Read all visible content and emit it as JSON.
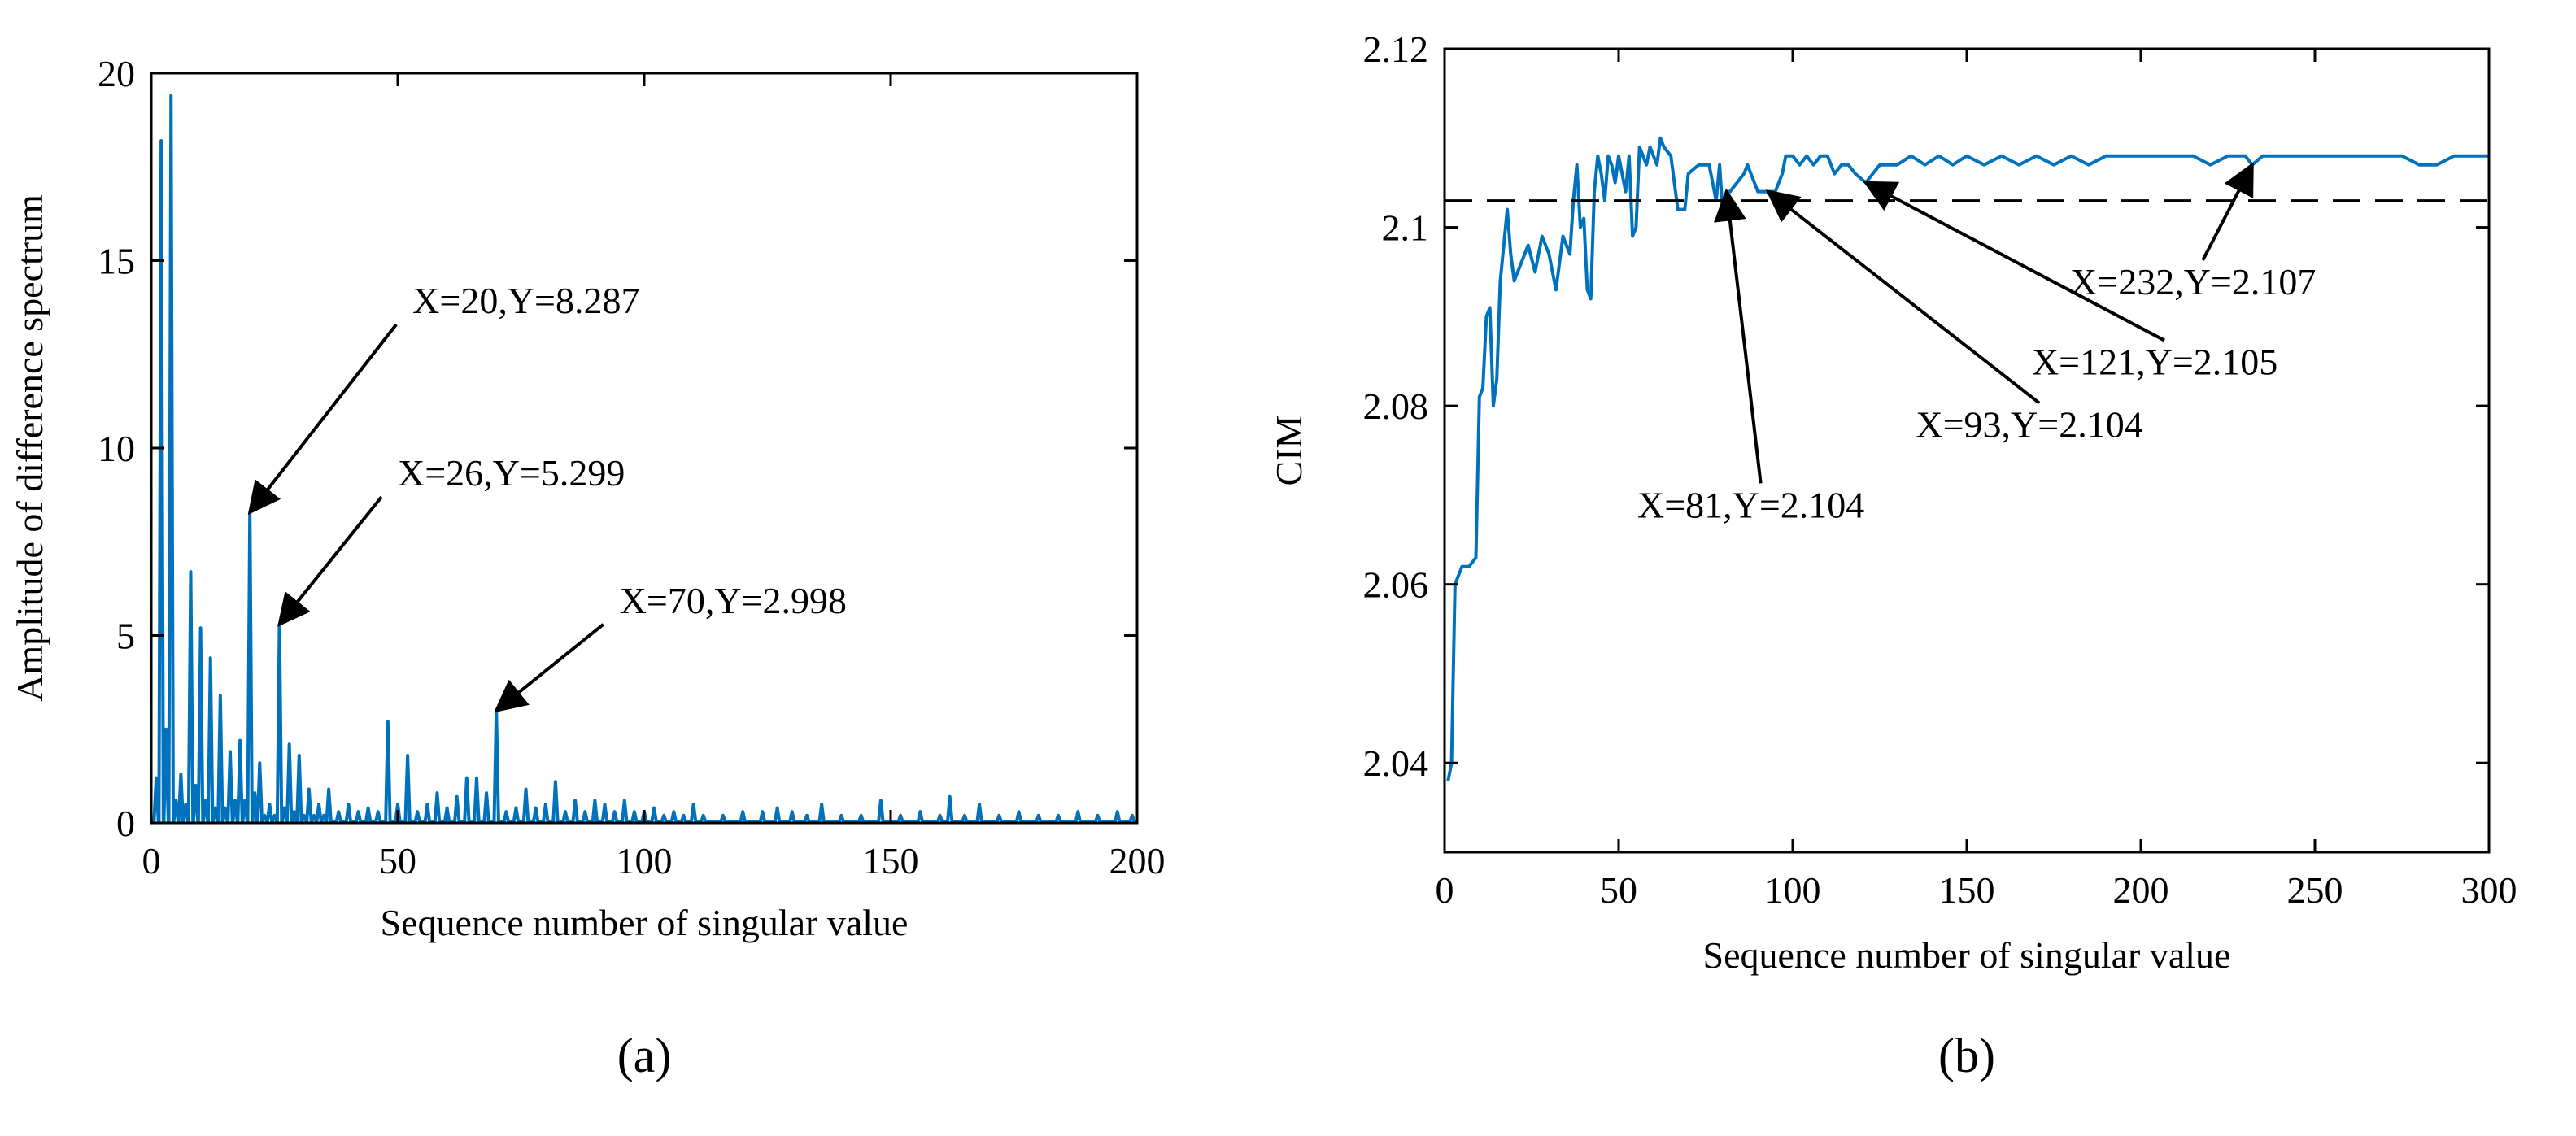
{
  "chart_data": [
    {
      "type": "line",
      "panel_label": "(a)",
      "xlabel": "Sequence number of singular value",
      "ylabel": "Amplitude of difference spectrum",
      "xlim": [
        0,
        200
      ],
      "ylim": [
        0,
        20
      ],
      "xticks": [
        0,
        50,
        100,
        150,
        200
      ],
      "yticks": [
        0,
        5,
        10,
        15,
        20
      ],
      "grid": false,
      "color": "#0072bd",
      "series": [
        {
          "name": "difference spectrum",
          "peaks": [
            [
              1,
              1.2
            ],
            [
              2,
              18.2
            ],
            [
              3,
              2.5
            ],
            [
              4,
              19.4
            ],
            [
              5,
              0.6
            ],
            [
              6,
              1.3
            ],
            [
              7,
              0.5
            ],
            [
              8,
              6.7
            ],
            [
              9,
              1.0
            ],
            [
              10,
              5.2
            ],
            [
              11,
              0.6
            ],
            [
              12,
              4.4
            ],
            [
              13,
              0.4
            ],
            [
              14,
              3.4
            ],
            [
              15,
              0.4
            ],
            [
              16,
              1.9
            ],
            [
              17,
              0.6
            ],
            [
              18,
              2.2
            ],
            [
              19,
              0.6
            ],
            [
              20,
              8.287
            ],
            [
              21,
              0.8
            ],
            [
              22,
              1.6
            ],
            [
              23,
              0.2
            ],
            [
              24,
              0.5
            ],
            [
              25,
              0.2
            ],
            [
              26,
              5.299
            ],
            [
              27,
              0.4
            ],
            [
              28,
              2.1
            ],
            [
              29,
              0.3
            ],
            [
              30,
              1.8
            ],
            [
              31,
              0.2
            ],
            [
              32,
              0.9
            ],
            [
              33,
              0.2
            ],
            [
              34,
              0.5
            ],
            [
              35,
              0.2
            ],
            [
              36,
              0.9
            ],
            [
              38,
              0.3
            ],
            [
              40,
              0.5
            ],
            [
              42,
              0.3
            ],
            [
              44,
              0.4
            ],
            [
              46,
              0.3
            ],
            [
              48,
              2.7
            ],
            [
              50,
              0.5
            ],
            [
              52,
              1.8
            ],
            [
              54,
              0.3
            ],
            [
              56,
              0.5
            ],
            [
              58,
              0.8
            ],
            [
              60,
              0.4
            ],
            [
              62,
              0.7
            ],
            [
              64,
              1.2
            ],
            [
              66,
              1.2
            ],
            [
              68,
              0.8
            ],
            [
              70,
              2.998
            ],
            [
              72,
              0.3
            ],
            [
              74,
              0.4
            ],
            [
              76,
              0.9
            ],
            [
              78,
              0.4
            ],
            [
              80,
              0.5
            ],
            [
              82,
              1.1
            ],
            [
              84,
              0.3
            ],
            [
              86,
              0.6
            ],
            [
              88,
              0.3
            ],
            [
              90,
              0.6
            ],
            [
              92,
              0.5
            ],
            [
              94,
              0.3
            ],
            [
              96,
              0.6
            ],
            [
              98,
              0.3
            ],
            [
              100,
              0.3
            ],
            [
              102,
              0.4
            ],
            [
              104,
              0.2
            ],
            [
              106,
              0.3
            ],
            [
              108,
              0.2
            ],
            [
              110,
              0.5
            ],
            [
              112,
              0.2
            ],
            [
              116,
              0.2
            ],
            [
              120,
              0.3
            ],
            [
              124,
              0.3
            ],
            [
              127,
              0.4
            ],
            [
              130,
              0.3
            ],
            [
              133,
              0.2
            ],
            [
              136,
              0.5
            ],
            [
              140,
              0.2
            ],
            [
              144,
              0.2
            ],
            [
              148,
              0.6
            ],
            [
              152,
              0.2
            ],
            [
              156,
              0.3
            ],
            [
              160,
              0.2
            ],
            [
              162,
              0.7
            ],
            [
              165,
              0.2
            ],
            [
              168,
              0.5
            ],
            [
              172,
              0.2
            ],
            [
              176,
              0.3
            ],
            [
              180,
              0.2
            ],
            [
              184,
              0.2
            ],
            [
              188,
              0.3
            ],
            [
              192,
              0.2
            ],
            [
              196,
              0.3
            ],
            [
              199,
              0.2
            ]
          ]
        }
      ],
      "annotations": [
        {
          "text": "X=20,Y=8.287",
          "x": 20,
          "y": 8.287,
          "text_x": 53,
          "text_y": 13.6
        },
        {
          "text": "X=26,Y=5.299",
          "x": 26,
          "y": 5.299,
          "text_x": 50,
          "text_y": 9.0
        },
        {
          "text": "X=70,Y=2.998",
          "x": 70,
          "y": 2.998,
          "text_x": 95,
          "text_y": 5.6
        }
      ]
    },
    {
      "type": "line",
      "panel_label": "(b)",
      "xlabel": "Sequence number of singular value",
      "ylabel": "CIM",
      "xlim": [
        0,
        300
      ],
      "ylim": [
        2.03,
        2.12
      ],
      "xticks": [
        0,
        50,
        100,
        150,
        200,
        250,
        300
      ],
      "yticks": [
        2.04,
        2.06,
        2.08,
        2.1,
        2.12
      ],
      "ytick_labels": [
        "2.04",
        "2.06",
        "2.08",
        "2.1",
        "2.12"
      ],
      "grid": false,
      "color": "#0072bd",
      "threshold": {
        "y": 2.103,
        "style": "dashed"
      },
      "series": [
        {
          "name": "CIM",
          "points": [
            [
              1,
              2.038
            ],
            [
              2,
              2.04
            ],
            [
              3,
              2.06
            ],
            [
              5,
              2.062
            ],
            [
              7,
              2.062
            ],
            [
              9,
              2.063
            ],
            [
              10,
              2.081
            ],
            [
              11,
              2.082
            ],
            [
              12,
              2.09
            ],
            [
              13,
              2.091
            ],
            [
              14,
              2.08
            ],
            [
              15,
              2.083
            ],
            [
              16,
              2.094
            ],
            [
              17,
              2.098
            ],
            [
              18,
              2.102
            ],
            [
              19,
              2.097
            ],
            [
              20,
              2.094
            ],
            [
              22,
              2.096
            ],
            [
              24,
              2.098
            ],
            [
              26,
              2.095
            ],
            [
              28,
              2.099
            ],
            [
              30,
              2.097
            ],
            [
              32,
              2.093
            ],
            [
              34,
              2.099
            ],
            [
              36,
              2.097
            ],
            [
              37,
              2.103
            ],
            [
              38,
              2.107
            ],
            [
              39,
              2.1
            ],
            [
              40,
              2.101
            ],
            [
              41,
              2.093
            ],
            [
              42,
              2.092
            ],
            [
              43,
              2.104
            ],
            [
              44,
              2.108
            ],
            [
              45,
              2.106
            ],
            [
              46,
              2.103
            ],
            [
              47,
              2.108
            ],
            [
              48,
              2.107
            ],
            [
              49,
              2.105
            ],
            [
              50,
              2.108
            ],
            [
              51,
              2.106
            ],
            [
              52,
              2.104
            ],
            [
              53,
              2.108
            ],
            [
              54,
              2.099
            ],
            [
              55,
              2.1
            ],
            [
              56,
              2.109
            ],
            [
              57,
              2.108
            ],
            [
              58,
              2.107
            ],
            [
              59,
              2.109
            ],
            [
              60,
              2.108
            ],
            [
              61,
              2.107
            ],
            [
              62,
              2.11
            ],
            [
              63,
              2.109
            ],
            [
              65,
              2.108
            ],
            [
              67,
              2.102
            ],
            [
              69,
              2.102
            ],
            [
              70,
              2.106
            ],
            [
              73,
              2.107
            ],
            [
              76,
              2.107
            ],
            [
              78,
              2.103
            ],
            [
              79,
              2.107
            ],
            [
              80,
              2.101
            ],
            [
              81,
              2.104
            ],
            [
              82,
              2.104
            ],
            [
              84,
              2.105
            ],
            [
              86,
              2.106
            ],
            [
              87,
              2.107
            ],
            [
              88,
              2.106
            ],
            [
              90,
              2.104
            ],
            [
              93,
              2.104
            ],
            [
              95,
              2.104
            ],
            [
              97,
              2.106
            ],
            [
              98,
              2.108
            ],
            [
              100,
              2.108
            ],
            [
              102,
              2.107
            ],
            [
              104,
              2.108
            ],
            [
              106,
              2.107
            ],
            [
              108,
              2.108
            ],
            [
              110,
              2.108
            ],
            [
              112,
              2.106
            ],
            [
              114,
              2.107
            ],
            [
              116,
              2.107
            ],
            [
              118,
              2.106
            ],
            [
              121,
              2.105
            ],
            [
              123,
              2.106
            ],
            [
              125,
              2.107
            ],
            [
              127,
              2.107
            ],
            [
              130,
              2.107
            ],
            [
              134,
              2.108
            ],
            [
              138,
              2.107
            ],
            [
              142,
              2.108
            ],
            [
              146,
              2.107
            ],
            [
              150,
              2.108
            ],
            [
              155,
              2.107
            ],
            [
              160,
              2.108
            ],
            [
              165,
              2.107
            ],
            [
              170,
              2.108
            ],
            [
              175,
              2.107
            ],
            [
              180,
              2.108
            ],
            [
              185,
              2.107
            ],
            [
              190,
              2.108
            ],
            [
              195,
              2.108
            ],
            [
              200,
              2.108
            ],
            [
              205,
              2.108
            ],
            [
              210,
              2.108
            ],
            [
              215,
              2.108
            ],
            [
              220,
              2.107
            ],
            [
              225,
              2.108
            ],
            [
              230,
              2.108
            ],
            [
              232,
              2.107
            ],
            [
              235,
              2.108
            ],
            [
              240,
              2.108
            ],
            [
              245,
              2.108
            ],
            [
              250,
              2.108
            ],
            [
              255,
              2.108
            ],
            [
              260,
              2.108
            ],
            [
              265,
              2.108
            ],
            [
              270,
              2.108
            ],
            [
              275,
              2.108
            ],
            [
              280,
              2.107
            ],
            [
              285,
              2.107
            ],
            [
              290,
              2.108
            ],
            [
              295,
              2.108
            ],
            [
              298,
              2.108
            ],
            [
              300,
              2.108
            ]
          ]
        }
      ],
      "annotations": [
        {
          "text": "X=81,Y=2.104",
          "x": 81,
          "y": 2.104,
          "text_x": 88,
          "text_y": 2.0675
        },
        {
          "text": "X=93,Y=2.104",
          "x": 93,
          "y": 2.104,
          "text_x": 168,
          "text_y": 2.0765
        },
        {
          "text": "X=121,Y=2.105",
          "x": 121,
          "y": 2.105,
          "text_x": 204,
          "text_y": 2.0835
        },
        {
          "text": "X=232,Y=2.107",
          "x": 232,
          "y": 2.107,
          "text_x": 215,
          "text_y": 2.0925
        }
      ]
    }
  ]
}
